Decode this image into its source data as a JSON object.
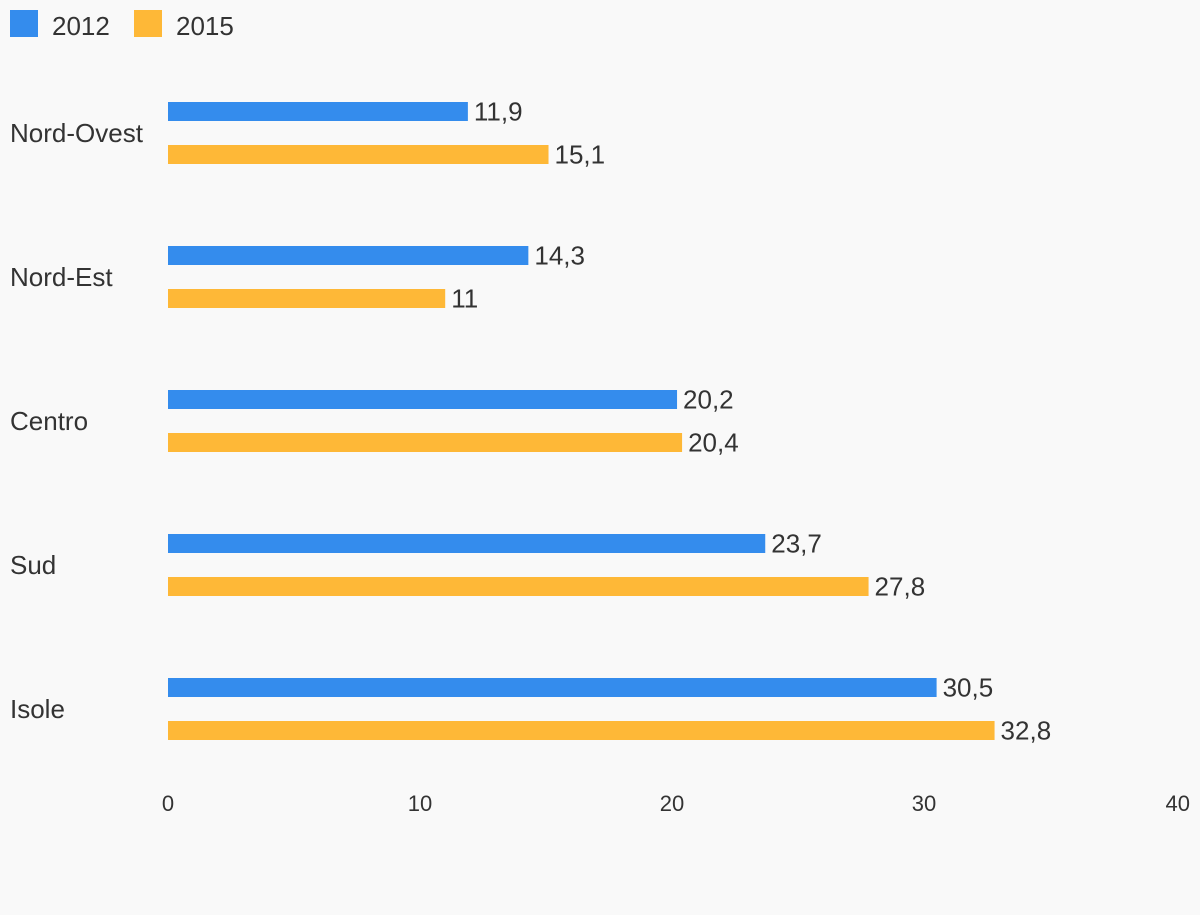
{
  "chart_data": {
    "type": "bar",
    "orientation": "horizontal",
    "categories": [
      "Nord-Ovest",
      "Nord-Est",
      "Centro",
      "Sud",
      "Isole"
    ],
    "series": [
      {
        "name": "2012",
        "values": [
          11.9,
          14.3,
          20.2,
          23.7,
          30.5
        ],
        "labels": [
          "11,9",
          "14,3",
          "20,2",
          "23,7",
          "30,5"
        ],
        "color": "#348ced"
      },
      {
        "name": "2015",
        "values": [
          15.1,
          11,
          20.4,
          27.8,
          32.8
        ],
        "labels": [
          "15,1",
          "11",
          "20,4",
          "27,8",
          "32,8"
        ],
        "color": "#feb837"
      }
    ],
    "xlim": [
      0,
      40
    ],
    "xticks": [
      "0",
      "10",
      "20",
      "30",
      "40"
    ],
    "legend_position": "top-left",
    "grid": false
  }
}
